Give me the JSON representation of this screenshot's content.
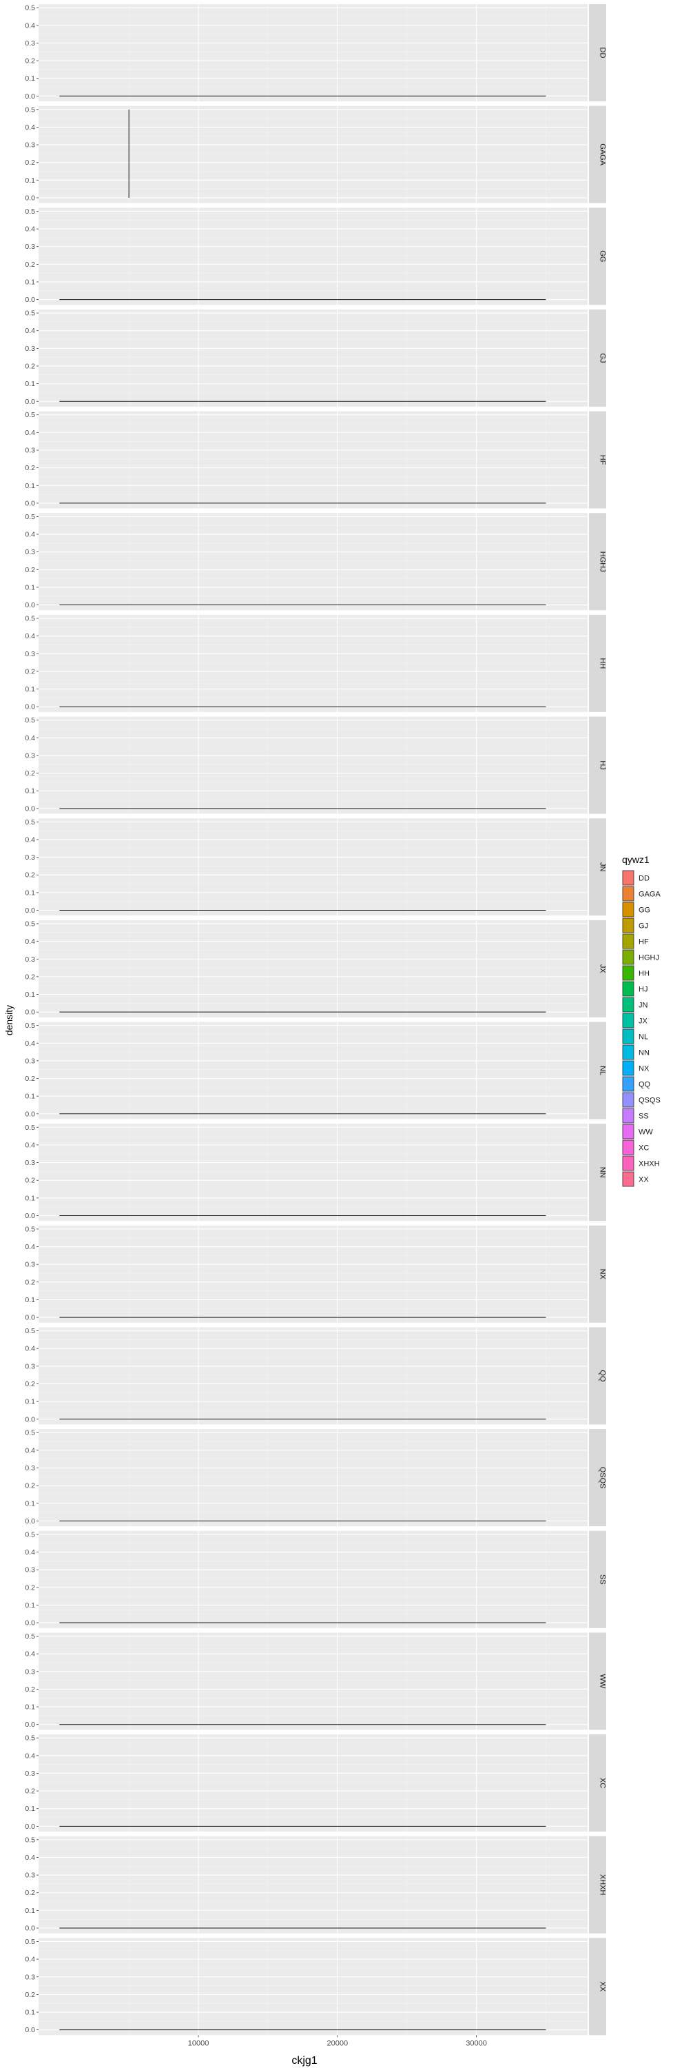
{
  "chart_data": {
    "type": "density",
    "facet_by": "qywz1",
    "facet_layout": "single column, strip labels on right, rotated",
    "xlabel": "ckjg1",
    "ylabel": "density",
    "xlim": [
      -1500,
      38000
    ],
    "ylim": [
      -0.03,
      0.52
    ],
    "x_ticks": [
      10000,
      20000,
      30000
    ],
    "x_tick_labels": [
      "10000",
      "20000",
      "30000"
    ],
    "y_ticks": [
      0.0,
      0.1,
      0.2,
      0.3,
      0.4,
      0.5
    ],
    "y_tick_labels": [
      "0.0",
      "0.1",
      "0.2",
      "0.3",
      "0.4",
      "0.5"
    ],
    "grid": true,
    "panel_background": "#ebebeb",
    "strip_background": "#d9d9d9",
    "line_color": "#1a1a1a",
    "legend": {
      "title": "qywz1",
      "placement": "right",
      "entries": [
        {
          "label": "DD",
          "color": "#F8766D"
        },
        {
          "label": "GAGA",
          "color": "#EA8331"
        },
        {
          "label": "GG",
          "color": "#D89000"
        },
        {
          "label": "GJ",
          "color": "#C09B00"
        },
        {
          "label": "HF",
          "color": "#A3A500"
        },
        {
          "label": "HGHJ",
          "color": "#7CAE00"
        },
        {
          "label": "HH",
          "color": "#39B600"
        },
        {
          "label": "HJ",
          "color": "#00BB4E"
        },
        {
          "label": "JN",
          "color": "#00BF7D"
        },
        {
          "label": "JX",
          "color": "#00C1A3"
        },
        {
          "label": "NL",
          "color": "#00BFC4"
        },
        {
          "label": "NN",
          "color": "#00BAE0"
        },
        {
          "label": "NX",
          "color": "#00B0F6"
        },
        {
          "label": "QQ",
          "color": "#35A2FF"
        },
        {
          "label": "QSQS",
          "color": "#9590FF"
        },
        {
          "label": "SS",
          "color": "#C77CFF"
        },
        {
          "label": "WW",
          "color": "#E76BF3"
        },
        {
          "label": "XC",
          "color": "#FA62DB"
        },
        {
          "label": "XHXH",
          "color": "#FF62BC"
        },
        {
          "label": "XX",
          "color": "#FF6C91"
        }
      ]
    },
    "facets": [
      {
        "label": "DD",
        "curve": [
          [
            0,
            0.0
          ],
          [
            35000,
            0.0
          ]
        ]
      },
      {
        "label": "GAGA",
        "curve": [
          [
            5000,
            0.0
          ],
          [
            5000,
            0.5
          ]
        ]
      },
      {
        "label": "GG",
        "curve": [
          [
            0,
            0.0
          ],
          [
            35000,
            0.0
          ]
        ]
      },
      {
        "label": "GJ",
        "curve": [
          [
            0,
            0.0
          ],
          [
            35000,
            0.0
          ]
        ]
      },
      {
        "label": "HF",
        "curve": [
          [
            0,
            0.0
          ],
          [
            35000,
            0.0
          ]
        ]
      },
      {
        "label": "HGHJ",
        "curve": [
          [
            0,
            0.0
          ],
          [
            35000,
            0.0
          ]
        ]
      },
      {
        "label": "HH",
        "curve": [
          [
            0,
            0.0
          ],
          [
            35000,
            0.0
          ]
        ]
      },
      {
        "label": "HJ",
        "curve": [
          [
            0,
            0.0
          ],
          [
            35000,
            0.0
          ]
        ]
      },
      {
        "label": "JN",
        "curve": [
          [
            0,
            0.0
          ],
          [
            35000,
            0.0
          ]
        ]
      },
      {
        "label": "JX",
        "curve": [
          [
            0,
            0.0
          ],
          [
            35000,
            0.0
          ]
        ]
      },
      {
        "label": "NL",
        "curve": [
          [
            0,
            0.0
          ],
          [
            35000,
            0.0
          ]
        ]
      },
      {
        "label": "NN",
        "curve": [
          [
            0,
            0.0
          ],
          [
            35000,
            0.0
          ]
        ]
      },
      {
        "label": "NX",
        "curve": [
          [
            0,
            0.0
          ],
          [
            35000,
            0.0
          ]
        ]
      },
      {
        "label": "QQ",
        "curve": [
          [
            0,
            0.0
          ],
          [
            35000,
            0.0
          ]
        ]
      },
      {
        "label": "QSQS",
        "curve": [
          [
            0,
            0.0
          ],
          [
            35000,
            0.0
          ]
        ]
      },
      {
        "label": "SS",
        "curve": [
          [
            0,
            0.0
          ],
          [
            35000,
            0.0
          ]
        ]
      },
      {
        "label": "WW",
        "curve": [
          [
            0,
            0.0
          ],
          [
            35000,
            0.0
          ]
        ]
      },
      {
        "label": "XC",
        "curve": [
          [
            0,
            0.0
          ],
          [
            35000,
            0.0
          ]
        ]
      },
      {
        "label": "XHXH",
        "curve": [
          [
            0,
            0.0
          ],
          [
            35000,
            0.0
          ]
        ]
      },
      {
        "label": "XX",
        "curve": [
          [
            0,
            0.0
          ],
          [
            35000,
            0.0
          ]
        ]
      }
    ]
  }
}
